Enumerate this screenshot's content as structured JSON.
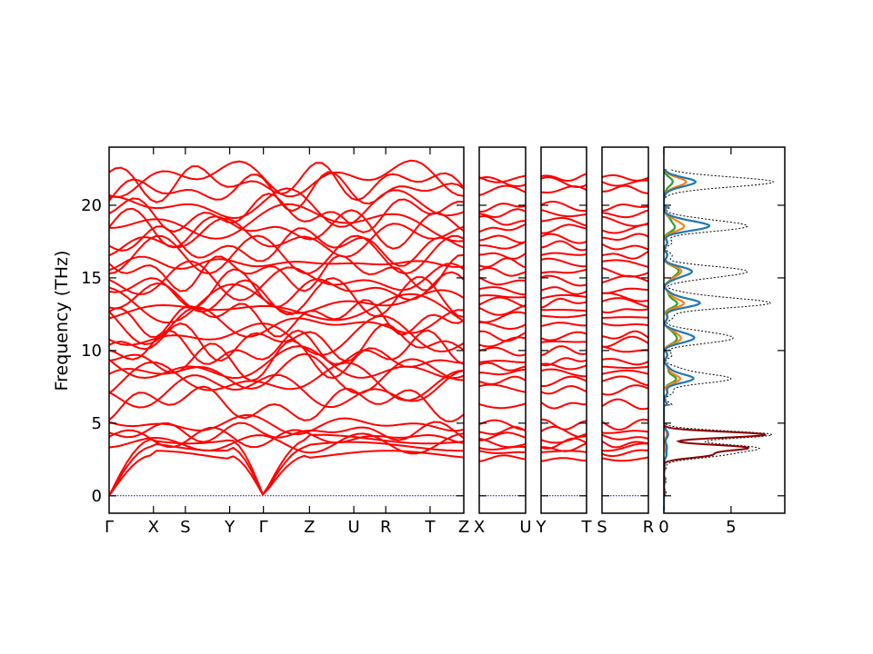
{
  "chart_data": {
    "type": "line",
    "ylabel": "Frequency (THz)",
    "ylim": [
      -1.2,
      24
    ],
    "yticks": [
      0,
      5,
      10,
      15,
      20
    ],
    "colors": {
      "bands": "#ff0000",
      "zero_line": "#0000cc",
      "dos_total": "#000000",
      "dos_1": "#1f77b4",
      "dos_2": "#ff7f0e",
      "dos_3": "#2ca02c",
      "dos_dark": "#8b0000"
    },
    "band_segments": [
      {
        "labels": [
          "Γ",
          "X",
          "S",
          "Y",
          "Γ",
          "Z",
          "U",
          "R",
          "T",
          "Z"
        ],
        "label_positions": [
          0,
          0.125,
          0.215,
          0.34,
          0.435,
          0.565,
          0.69,
          0.78,
          0.905,
          1.0
        ]
      },
      {
        "labels": [
          "X",
          "U"
        ],
        "label_positions": [
          0,
          1
        ]
      },
      {
        "labels": [
          "Y",
          "T"
        ],
        "label_positions": [
          0,
          1
        ]
      },
      {
        "labels": [
          "S",
          "R"
        ],
        "label_positions": [
          0,
          1
        ]
      }
    ],
    "acoustic_max_thz": 4.0,
    "high_band_levels_thz": [
      6.3,
      7.3,
      7.9,
      8.4,
      8.9,
      9.3,
      10.0,
      10.6,
      11.0,
      11.8,
      12.3,
      12.8,
      13.3,
      13.7,
      14.2,
      14.8,
      15.4,
      16.0,
      16.6,
      17.2,
      17.7,
      18.4,
      18.9,
      19.4,
      19.9
    ],
    "low_band_levels_thz": [
      2.6,
      3.0,
      3.3,
      3.6,
      4.0,
      4.4,
      4.9
    ],
    "top_band_levels_thz": [
      21.0,
      21.6,
      21.9
    ],
    "dos": {
      "xlim": [
        0,
        9
      ],
      "xticks": [
        0,
        5
      ],
      "peaks": [
        {
          "freq": 21.6,
          "total": 8.0,
          "s1": 2.3,
          "s2": 1.6,
          "s3": 0.6
        },
        {
          "freq": 18.6,
          "total": 6.0,
          "s1": 3.3,
          "s2": 1.4,
          "s3": 0.7
        },
        {
          "freq": 15.4,
          "total": 6.0,
          "s1": 2.0,
          "s2": 1.2,
          "s3": 1.0
        },
        {
          "freq": 13.3,
          "total": 7.5,
          "s1": 2.5,
          "s2": 1.3,
          "s3": 0.8
        },
        {
          "freq": 10.9,
          "total": 5.0,
          "s1": 2.2,
          "s2": 1.2,
          "s3": 0.9
        },
        {
          "freq": 8.1,
          "total": 4.5,
          "s1": 2.0,
          "s2": 1.0,
          "s3": 0.7
        },
        {
          "freq": 4.2,
          "total": 8.0,
          "s1": 0.3,
          "s2": 0.2,
          "s3": 0.2
        },
        {
          "freq": 3.3,
          "total": 6.5,
          "s1": 0.2,
          "s2": 0.1,
          "s3": 0.2
        },
        {
          "freq": 2.8,
          "total": 3.5,
          "s1": 0.1,
          "s2": 0.1,
          "s3": 0.1
        }
      ]
    }
  }
}
